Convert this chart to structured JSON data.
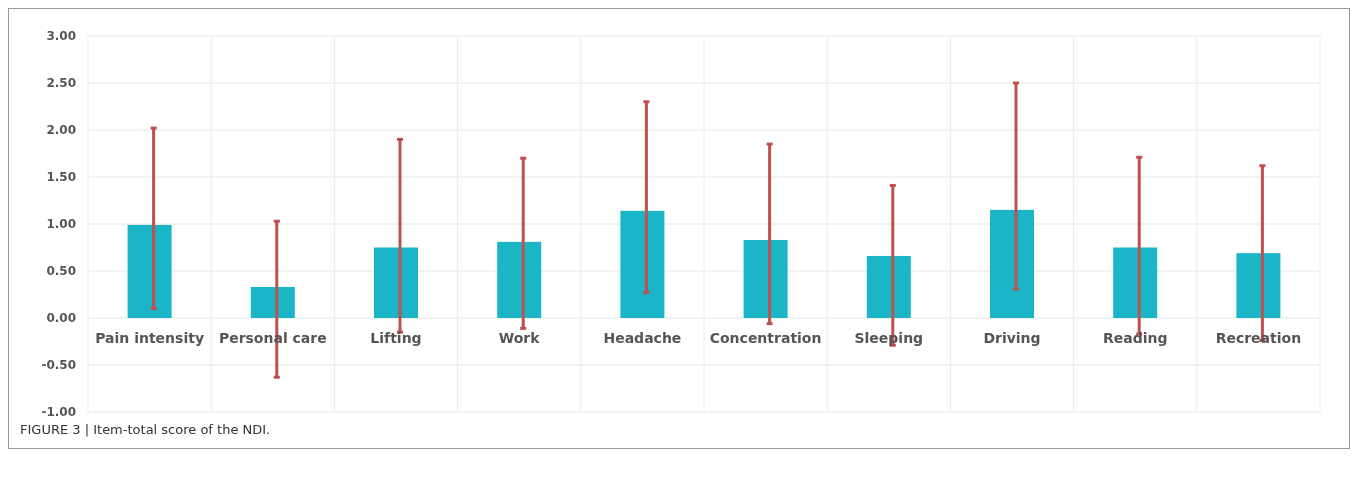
{
  "chart_data": {
    "type": "bar",
    "categories": [
      "Pain intensity",
      "Personal care",
      "Lifting",
      "Work",
      "Headache",
      "Concentration",
      "Sleeping",
      "Driving",
      "Reading",
      "Recreation"
    ],
    "values": [
      0.99,
      0.33,
      0.75,
      0.81,
      1.14,
      0.83,
      0.66,
      1.15,
      0.75,
      0.69
    ],
    "errors": [
      [
        0.1,
        2.02
      ],
      [
        -0.63,
        1.03
      ],
      [
        -0.15,
        1.9
      ],
      [
        -0.11,
        1.7
      ],
      [
        0.27,
        2.3
      ],
      [
        -0.06,
        1.85
      ],
      [
        -0.29,
        1.41
      ],
      [
        0.31,
        2.5
      ],
      [
        -0.17,
        1.71
      ],
      [
        -0.24,
        1.62
      ]
    ],
    "color": "#1ab5c6",
    "ylim": [
      -1,
      3
    ],
    "yticks": [
      {
        "value": -1,
        "label": "-1.00"
      },
      {
        "value": -0.5,
        "label": "-0.50"
      },
      {
        "value": 0,
        "label": "0.00"
      },
      {
        "value": 0.5,
        "label": "0.50"
      },
      {
        "value": 1,
        "label": "1.00"
      },
      {
        "value": 1.5,
        "label": "1.50"
      },
      {
        "value": 2,
        "label": "2.00"
      },
      {
        "value": 2.5,
        "label": "2.50"
      },
      {
        "value": 3,
        "label": "3.00"
      }
    ],
    "grid": true,
    "annotations": [
      "FIGURE 3 | Item-total score of the NDI."
    ]
  }
}
